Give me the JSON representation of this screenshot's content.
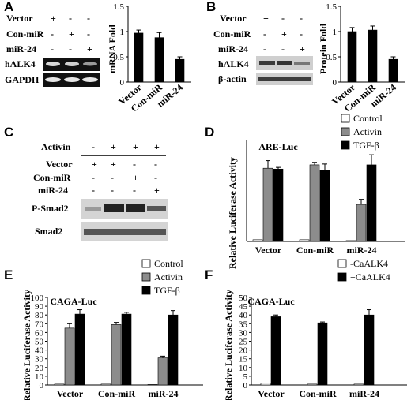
{
  "panels": {
    "A": {
      "label": "A",
      "rows": [
        {
          "name": "Vector",
          "marks": [
            "+",
            "-",
            "-"
          ]
        },
        {
          "name": "Con-miR",
          "marks": [
            "-",
            "+",
            "-"
          ]
        },
        {
          "name": "miR-24",
          "marks": [
            "-",
            "-",
            "+"
          ]
        }
      ],
      "blots": [
        "hALK4",
        "GAPDH"
      ]
    },
    "B": {
      "label": "B",
      "rows": [
        {
          "name": "Vector",
          "marks": [
            "+",
            "-",
            "-"
          ]
        },
        {
          "name": "Con-miR",
          "marks": [
            "-",
            "+",
            "-"
          ]
        },
        {
          "name": "miR-24",
          "marks": [
            "-",
            "-",
            "+"
          ]
        }
      ],
      "blots": [
        "hALK4",
        "β-actin"
      ]
    },
    "C": {
      "label": "C",
      "rows": [
        {
          "name": "Activin",
          "marks": [
            "-",
            "+",
            "+",
            "+"
          ]
        },
        {
          "name": "Vector",
          "marks": [
            "+",
            "+",
            "-",
            "-"
          ]
        },
        {
          "name": "Con-miR",
          "marks": [
            "-",
            "-",
            "+",
            "-"
          ]
        },
        {
          "name": "miR-24",
          "marks": [
            "-",
            "-",
            "-",
            "+"
          ]
        }
      ],
      "blots": [
        "P-Smad2",
        "Smad2"
      ]
    },
    "D": {
      "label": "D"
    },
    "E": {
      "label": "E"
    },
    "F": {
      "label": "F"
    }
  },
  "chart_data": [
    {
      "id": "A",
      "type": "bar",
      "title": "",
      "ylabel": "mRNA Fold",
      "categories": [
        "Vector",
        "Con-miR",
        "miR-24"
      ],
      "series": [
        {
          "values": [
            0.97,
            0.88,
            0.45
          ],
          "errors": [
            0.06,
            0.1,
            0.05
          ],
          "color": "#000000"
        }
      ],
      "ylim": [
        0,
        1.5
      ],
      "yticks": [
        "0",
        "0.5",
        "1",
        "1.5"
      ],
      "legend": []
    },
    {
      "id": "B",
      "type": "bar",
      "title": "",
      "ylabel": "Protein Fold",
      "categories": [
        "Vector",
        "Con-miR",
        "miR-24"
      ],
      "series": [
        {
          "values": [
            1.0,
            1.03,
            0.45
          ],
          "errors": [
            0.08,
            0.08,
            0.05
          ],
          "color": "#000000"
        }
      ],
      "ylim": [
        0,
        1.5
      ],
      "yticks": [
        "0",
        "0.5",
        "1",
        "1.5"
      ],
      "legend": []
    },
    {
      "id": "D",
      "type": "bar",
      "title": "ARE-Luc",
      "ylabel": "Relative Luciferase Activity",
      "categories": [
        "Vector",
        "Con-miR",
        "miR-24"
      ],
      "series": [
        {
          "name": "Control",
          "values": [
            1,
            1,
            0.5
          ],
          "errors": [
            0,
            0,
            0
          ],
          "color": "#ffffff"
        },
        {
          "name": "Activin",
          "values": [
            43.5,
            45.5,
            22
          ],
          "errors": [
            4.5,
            1.5,
            3
          ],
          "color": "#8c8c8c"
        },
        {
          "name": "TGF-β",
          "values": [
            43,
            42.5,
            45.5
          ],
          "errors": [
            1,
            3.5,
            6
          ],
          "color": "#000000"
        }
      ],
      "ylim": [
        0,
        60
      ],
      "yticks": [],
      "legend": [
        "Control",
        "Activin",
        "TGF-β"
      ]
    },
    {
      "id": "E",
      "type": "bar",
      "title": "CAGA-Luc",
      "ylabel": "Relative Luciferase Activity",
      "categories": [
        "Vector",
        "Con-miR",
        "miR-24"
      ],
      "series": [
        {
          "name": "Control",
          "values": [
            1,
            1,
            0.5
          ],
          "errors": [
            0,
            0,
            0
          ],
          "color": "#ffffff"
        },
        {
          "name": "Activin",
          "values": [
            65,
            69,
            31
          ],
          "errors": [
            5,
            2.5,
            2
          ],
          "color": "#8c8c8c"
        },
        {
          "name": "TGF-β",
          "values": [
            81,
            81,
            80
          ],
          "errors": [
            5,
            2,
            5
          ],
          "color": "#000000"
        }
      ],
      "ylim": [
        0,
        100
      ],
      "yticks": [
        "0",
        "10",
        "20",
        "30",
        "40",
        "50",
        "60",
        "70",
        "80",
        "90",
        "100"
      ],
      "legend": [
        "Control",
        "Activin",
        "TGF-β"
      ]
    },
    {
      "id": "F",
      "type": "bar",
      "title": "CAGA-Luc",
      "ylabel": "Relative Luciferase Activity",
      "categories": [
        "Vector",
        "Con-miR",
        "miR-24"
      ],
      "series": [
        {
          "name": "-CaALK4",
          "values": [
            1,
            0.5,
            0.5
          ],
          "errors": [
            0,
            0,
            0
          ],
          "color": "#ffffff"
        },
        {
          "name": "+CaALK4",
          "values": [
            39,
            35.5,
            40
          ],
          "errors": [
            1,
            0.5,
            3
          ],
          "color": "#000000"
        }
      ],
      "ylim": [
        0,
        50
      ],
      "yticks": [
        "0",
        "5",
        "10",
        "15",
        "20",
        "25",
        "30",
        "35",
        "40",
        "45",
        "50"
      ],
      "legend": [
        "-CaALK4",
        "+CaALK4"
      ]
    }
  ]
}
